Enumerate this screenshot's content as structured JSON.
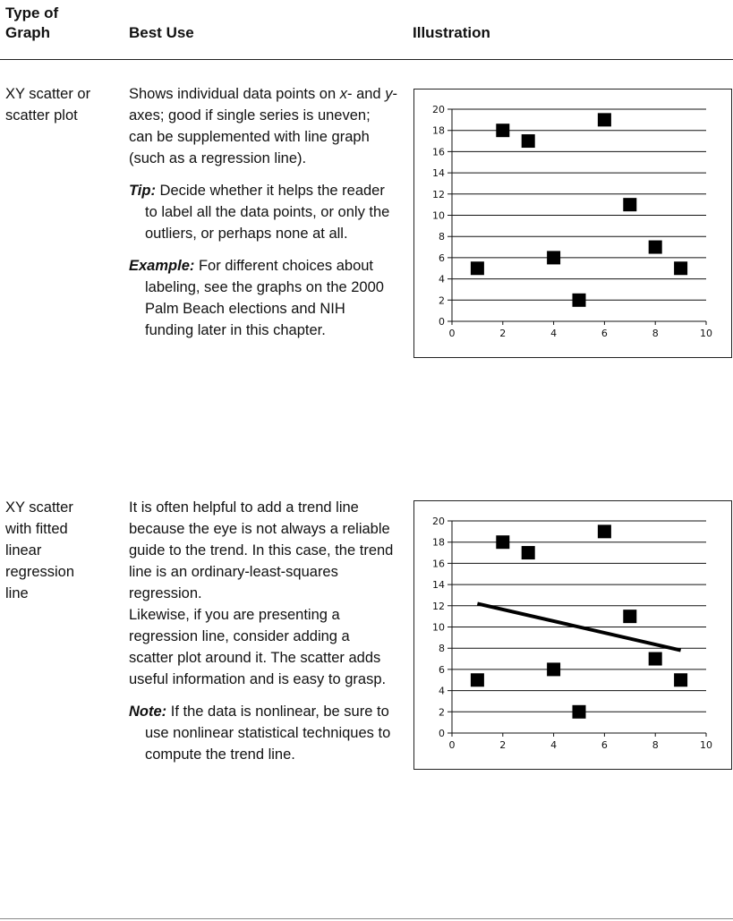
{
  "header": {
    "col1_line1": "Type of",
    "col1_line2": "Graph",
    "col2": "Best Use",
    "col3": "Illustration"
  },
  "rows": [
    {
      "type_line1": "XY scatter or",
      "type_line2": "scatter plot",
      "use_pre": "Shows individual data points on ",
      "use_x": "x",
      "use_mid": "- and ",
      "use_y": "y",
      "use_post": "-axes; good if single series is uneven; can be supplemented with line graph (such as a regression line).",
      "tip_label": "Tip:",
      "tip_text": " Decide whether it helps the reader to label all the data points, or only the outliers, or perhaps none at all.",
      "example_label": "Example:",
      "example_text": " For different choices about labeling, see the graphs on the 2000 Palm Beach elections and NIH funding later in this chapter."
    },
    {
      "type_lines": [
        "XY scatter",
        "with fitted",
        "linear",
        "regression",
        "line"
      ],
      "use_p1": "It is often helpful to add a trend line because the eye is not always a reliable guide to the trend. In this case, the trend line is an ordinary-least-squares regression.",
      "use_p2": "Likewise, if you are presenting a regression line, consider adding a scatter plot around it. The scatter adds useful information and is easy to grasp.",
      "note_label": "Note:",
      "note_text": " If the data is nonlinear, be sure to use nonlinear statistical techniques to compute the trend line."
    }
  ],
  "chart_data": [
    {
      "type": "scatter",
      "x": [
        1,
        2,
        3,
        4,
        5,
        6,
        7,
        8,
        9
      ],
      "y": [
        5,
        18,
        17,
        6,
        2,
        19,
        11,
        7,
        5
      ],
      "xlim": [
        0,
        10
      ],
      "ylim": [
        0,
        20
      ],
      "xticks": [
        "0",
        "2",
        "4",
        "6",
        "8",
        "10"
      ],
      "yticks": [
        "0",
        "2",
        "4",
        "6",
        "8",
        "10",
        "12",
        "14",
        "16",
        "18",
        "20"
      ],
      "grid": "horizontal",
      "marker": "square",
      "color": "#000000"
    },
    {
      "type": "scatter",
      "x": [
        1,
        2,
        3,
        4,
        5,
        6,
        7,
        8,
        9
      ],
      "y": [
        5,
        18,
        17,
        6,
        2,
        19,
        11,
        7,
        5
      ],
      "xlim": [
        0,
        10
      ],
      "ylim": [
        0,
        20
      ],
      "xticks": [
        "0",
        "2",
        "4",
        "6",
        "8",
        "10"
      ],
      "yticks": [
        "0",
        "2",
        "4",
        "6",
        "8",
        "10",
        "12",
        "14",
        "16",
        "18",
        "20"
      ],
      "grid": "horizontal",
      "marker": "square",
      "color": "#000000",
      "trend_line": {
        "x": [
          1,
          9
        ],
        "y": [
          12.2,
          7.8
        ]
      }
    }
  ]
}
